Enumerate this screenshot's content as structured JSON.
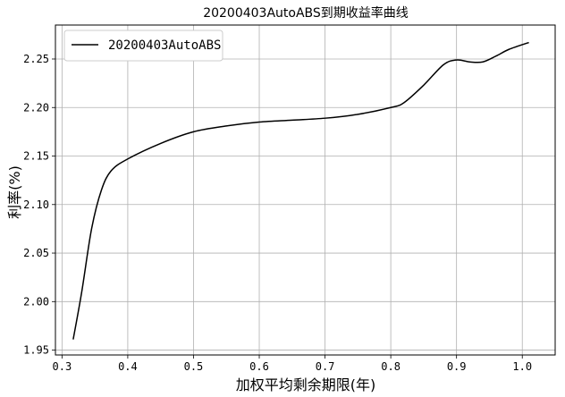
{
  "chart_data": {
    "type": "line",
    "title": "20200403AutoABS到期收益率曲线",
    "xlabel": "加权平均剩余期限(年)",
    "ylabel": "利率(%)",
    "xlim": [
      0.29,
      1.05
    ],
    "ylim": [
      1.945,
      2.285
    ],
    "xticks": [
      0.3,
      0.4,
      0.5,
      0.6,
      0.7,
      0.8,
      0.9,
      1.0
    ],
    "xtick_labels": [
      "0.3",
      "0.4",
      "0.5",
      "0.6",
      "0.7",
      "0.8",
      "0.9",
      "1.0"
    ],
    "yticks": [
      1.95,
      2.0,
      2.05,
      2.1,
      2.15,
      2.2,
      2.25
    ],
    "ytick_labels": [
      "1.95",
      "2.00",
      "2.05",
      "2.10",
      "2.15",
      "2.20",
      "2.25"
    ],
    "grid": true,
    "legend_position": "top-left",
    "series": [
      {
        "name": "20200403AutoABS",
        "color": "#000000",
        "x": [
          0.317,
          0.33,
          0.345,
          0.36,
          0.375,
          0.4,
          0.45,
          0.5,
          0.55,
          0.6,
          0.65,
          0.7,
          0.75,
          0.8,
          0.82,
          0.85,
          0.88,
          0.9,
          0.92,
          0.94,
          0.96,
          0.98,
          1.01
        ],
        "y": [
          1.961,
          2.01,
          2.075,
          2.115,
          2.135,
          2.147,
          2.163,
          2.175,
          2.181,
          2.185,
          2.187,
          2.189,
          2.193,
          2.2,
          2.205,
          2.223,
          2.244,
          2.249,
          2.247,
          2.247,
          2.253,
          2.26,
          2.267
        ]
      }
    ]
  }
}
